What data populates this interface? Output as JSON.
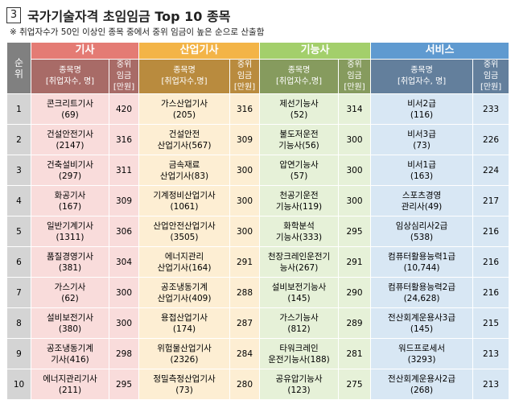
{
  "header": {
    "number": "3",
    "title": "국가기술자격 초임임금 Top 10 종목",
    "note": "※ 취업자수가 50인 이상인 종목 중에서 중위 임금이 높은 순으로 산출함"
  },
  "table": {
    "rank_header": [
      "순",
      "위"
    ],
    "groups": [
      {
        "name": "기사",
        "item_header": [
          "종목명",
          "[취업자수, 명]"
        ],
        "wage_header": [
          "중위",
          "임금",
          "[만원]"
        ]
      },
      {
        "name": "산업기사",
        "item_header": [
          "종목명",
          "[취업자수,명]"
        ],
        "wage_header": [
          "중위",
          "임금",
          "[만원]"
        ]
      },
      {
        "name": "기능사",
        "item_header": [
          "종목명",
          "[취업자수,명]"
        ],
        "wage_header": [
          "중위",
          "임금",
          "[만원]"
        ]
      },
      {
        "name": "서비스",
        "item_header": [
          "종목명",
          "[취업자수, 명]"
        ],
        "wage_header": [
          "중위",
          "임금",
          "[만원]"
        ]
      }
    ],
    "rows": [
      {
        "rank": 1,
        "cells": [
          {
            "lines": [
              "콘크리트기사",
              "(69)"
            ],
            "wage": 420
          },
          {
            "lines": [
              "가스산업기사",
              "(205)"
            ],
            "wage": 316
          },
          {
            "lines": [
              "제선기능사",
              "(52)"
            ],
            "wage": 314
          },
          {
            "lines": [
              "비서2급",
              "(116)"
            ],
            "wage": 233
          }
        ]
      },
      {
        "rank": 2,
        "cells": [
          {
            "lines": [
              "건설안전기사",
              "(2147)"
            ],
            "wage": 316
          },
          {
            "lines": [
              "건설안전",
              "산업기사(567)"
            ],
            "wage": 309
          },
          {
            "lines": [
              "불도저운전",
              "기능사(56)"
            ],
            "wage": 300
          },
          {
            "lines": [
              "비서3급",
              "(73)"
            ],
            "wage": 226
          }
        ]
      },
      {
        "rank": 3,
        "cells": [
          {
            "lines": [
              "건축설비기사",
              "(297)"
            ],
            "wage": 311
          },
          {
            "lines": [
              "금속재료",
              "산업기사(83)"
            ],
            "wage": 300
          },
          {
            "lines": [
              "압연기능사",
              "(57)"
            ],
            "wage": 300
          },
          {
            "lines": [
              "비서1급",
              "(163)"
            ],
            "wage": 224
          }
        ]
      },
      {
        "rank": 4,
        "cells": [
          {
            "lines": [
              "화공기사",
              "(167)"
            ],
            "wage": 309
          },
          {
            "lines": [
              "기계정비산업기사",
              "(1061)"
            ],
            "wage": 300
          },
          {
            "lines": [
              "천공기운전",
              "기능사(119)"
            ],
            "wage": 300
          },
          {
            "lines": [
              "스포츠경영",
              "관리사(49)"
            ],
            "wage": 217
          }
        ]
      },
      {
        "rank": 5,
        "cells": [
          {
            "lines": [
              "일반기계기사",
              "(1311)"
            ],
            "wage": 306
          },
          {
            "lines": [
              "산업안전산업기사",
              "(3505)"
            ],
            "wage": 300
          },
          {
            "lines": [
              "화학분석",
              "기능사(333)"
            ],
            "wage": 295
          },
          {
            "lines": [
              "임상심리사2급",
              "(538)"
            ],
            "wage": 216
          }
        ]
      },
      {
        "rank": 6,
        "cells": [
          {
            "lines": [
              "품질경영기사",
              "(381)"
            ],
            "wage": 304
          },
          {
            "lines": [
              "에너지관리",
              "산업기사(164)"
            ],
            "wage": 291
          },
          {
            "lines": [
              "천장크레인운전기",
              "능사(267)"
            ],
            "wage": 291
          },
          {
            "lines": [
              "컴퓨터활용능력1급",
              "(10,744)"
            ],
            "wage": 216
          }
        ]
      },
      {
        "rank": 7,
        "cells": [
          {
            "lines": [
              "가스기사",
              "(62)"
            ],
            "wage": 300
          },
          {
            "lines": [
              "공조냉동기계",
              "산업기사(409)"
            ],
            "wage": 288
          },
          {
            "lines": [
              "설비보전기능사",
              "(145)"
            ],
            "wage": 290
          },
          {
            "lines": [
              "컴퓨터활용능력2급",
              "(24,628)"
            ],
            "wage": 216
          }
        ]
      },
      {
        "rank": 8,
        "cells": [
          {
            "lines": [
              "설비보전기사",
              "(380)"
            ],
            "wage": 300
          },
          {
            "lines": [
              "용접산업기사",
              "(174)"
            ],
            "wage": 287
          },
          {
            "lines": [
              "가스기능사",
              "(812)"
            ],
            "wage": 289
          },
          {
            "lines": [
              "전산회계운용사3급",
              "(145)"
            ],
            "wage": 215
          }
        ]
      },
      {
        "rank": 9,
        "cells": [
          {
            "lines": [
              "공조냉동기계",
              "기사(416)"
            ],
            "wage": 298
          },
          {
            "lines": [
              "위험물산업기사",
              "(2326)"
            ],
            "wage": 284
          },
          {
            "lines": [
              "타워크레인",
              "운전기능사(188)"
            ],
            "wage": 281
          },
          {
            "lines": [
              "워드프로세서",
              "(3293)"
            ],
            "wage": 213
          }
        ]
      },
      {
        "rank": 10,
        "cells": [
          {
            "lines": [
              "에너지관리기사",
              "(211)"
            ],
            "wage": 295
          },
          {
            "lines": [
              "정밀측정산업기사",
              "(73)"
            ],
            "wage": 280
          },
          {
            "lines": [
              "공유압기능사",
              "(123)"
            ],
            "wage": 275
          },
          {
            "lines": [
              "전산회계운용사2급",
              "(268)"
            ],
            "wage": 213
          }
        ]
      }
    ]
  }
}
